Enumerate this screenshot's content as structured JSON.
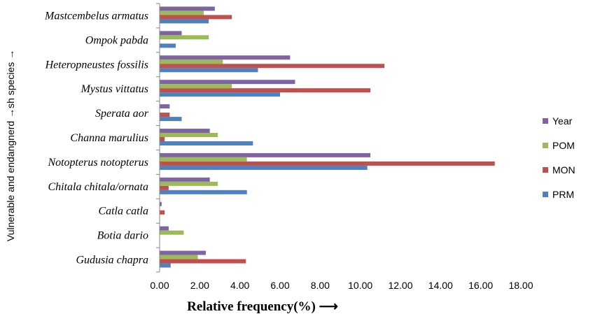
{
  "chart_data": {
    "type": "bar",
    "orientation": "horizontal",
    "categories": [
      "Mastcembelus armatus",
      "Ompok pabda",
      "Heteropneustes fossilis",
      "Mystus vittatus",
      "Sperata aor",
      "Channa marulius",
      "Notopterus notopterus",
      "Chitala chitala/ornata",
      "Catla catla",
      "Botia dario",
      "Gudusia chapra"
    ],
    "series": [
      {
        "name": "Year",
        "color": "#8064A2",
        "values": [
          2.75,
          1.1,
          6.5,
          6.75,
          0.5,
          2.5,
          10.5,
          2.5,
          0.1,
          0.45,
          2.3
        ]
      },
      {
        "name": "POM",
        "color": "#9BBB59",
        "values": [
          2.2,
          2.45,
          3.15,
          3.6,
          0.0,
          2.9,
          4.35,
          2.9,
          0.0,
          1.2,
          1.9
        ]
      },
      {
        "name": "MON",
        "color": "#C0504D",
        "values": [
          3.6,
          0.0,
          11.2,
          10.5,
          0.5,
          0.25,
          16.7,
          0.45,
          0.25,
          0.0,
          4.3
        ]
      },
      {
        "name": "PRM",
        "color": "#4F81BD",
        "values": [
          2.45,
          0.8,
          4.9,
          6.0,
          1.1,
          4.65,
          10.35,
          4.35,
          0.0,
          0.0,
          0.55
        ]
      }
    ],
    "xlim": [
      0,
      18
    ],
    "x_ticks": [
      "0.00",
      "2.00",
      "4.00",
      "6.00",
      "8.00",
      "10.00",
      "12.00",
      "14.00",
      "16.00",
      "18.00"
    ],
    "xlabel": "Relative frequency(%)  ⟶",
    "ylabel": "Vulnerable  and endangnerd →sh species →",
    "grid": false,
    "legend_position": "right",
    "legend_order": [
      "Year",
      "POM",
      "MON",
      "PRM"
    ]
  }
}
